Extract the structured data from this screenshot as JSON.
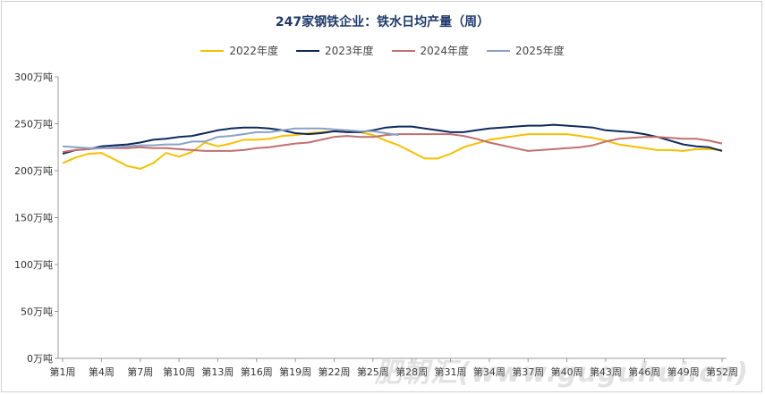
{
  "chart_data": {
    "type": "line",
    "title": "247家钢铁企业：铁水日均产量（周）",
    "xlabel": "",
    "ylabel": "",
    "ylim": [
      0,
      300
    ],
    "yticks": [
      {
        "value": 0,
        "label": "0万吨"
      },
      {
        "value": 50,
        "label": "50万吨"
      },
      {
        "value": 100,
        "label": "100万吨"
      },
      {
        "value": 150,
        "label": "150万吨"
      },
      {
        "value": 200,
        "label": "200万吨"
      },
      {
        "value": 250,
        "label": "250万吨"
      },
      {
        "value": 300,
        "label": "300万吨"
      }
    ],
    "xticks": [
      "第1周",
      "第4周",
      "第7周",
      "第10周",
      "第13周",
      "第16周",
      "第19周",
      "第22周",
      "第25周",
      "第28周",
      "第31周",
      "第34周",
      "第37周",
      "第40周",
      "第43周",
      "第46周",
      "第49周",
      "第52周"
    ],
    "grid": false,
    "legend_position": "top",
    "series": [
      {
        "name": "2022年度",
        "color": "#f5c000",
        "values": [
          208,
          214,
          218,
          219,
          212,
          205,
          202,
          208,
          219,
          215,
          220,
          230,
          226,
          229,
          233,
          233,
          234,
          237,
          238,
          240,
          241,
          242,
          243,
          241,
          238,
          232,
          227,
          220,
          213,
          213,
          218,
          225,
          229,
          233,
          235,
          237,
          239,
          239,
          239,
          239,
          237,
          235,
          232,
          228,
          226,
          224,
          222,
          222,
          221,
          223,
          223,
          222
        ]
      },
      {
        "name": "2023年度",
        "color": "#0d2a5c",
        "values": [
          218,
          222,
          223,
          226,
          227,
          228,
          230,
          233,
          234,
          236,
          237,
          240,
          243,
          245,
          246,
          246,
          245,
          243,
          240,
          239,
          240,
          242,
          241,
          241,
          243,
          246,
          247,
          247,
          245,
          243,
          241,
          241,
          243,
          245,
          246,
          247,
          248,
          248,
          249,
          248,
          247,
          246,
          243,
          242,
          241,
          239,
          236,
          232,
          228,
          226,
          225,
          221
        ]
      },
      {
        "name": "2024年度",
        "color": "#c0706e",
        "values": [
          220,
          222,
          223,
          224,
          224,
          224,
          225,
          224,
          224,
          223,
          222,
          221,
          221,
          221,
          222,
          224,
          225,
          227,
          229,
          230,
          233,
          236,
          237,
          236,
          236,
          238,
          239,
          239,
          239,
          239,
          239,
          237,
          234,
          230,
          227,
          224,
          221,
          222,
          223,
          224,
          225,
          227,
          231,
          234,
          235,
          236,
          236,
          235,
          234,
          234,
          232,
          229
        ]
      },
      {
        "name": "2025年度",
        "color": "#8aa1c6",
        "values": [
          226,
          225,
          224,
          224,
          225,
          226,
          227,
          227,
          228,
          228,
          231,
          231,
          236,
          237,
          239,
          241,
          241,
          243,
          245,
          245,
          245,
          244,
          243,
          242,
          242,
          240,
          238,
          null,
          null,
          null,
          null,
          null,
          null,
          null,
          null,
          null,
          null,
          null,
          null,
          null,
          null,
          null,
          null,
          null,
          null,
          null,
          null,
          null,
          null,
          null,
          null,
          null
        ]
      }
    ]
  },
  "watermark": "肥朝汇(www.guguhui.cn)"
}
